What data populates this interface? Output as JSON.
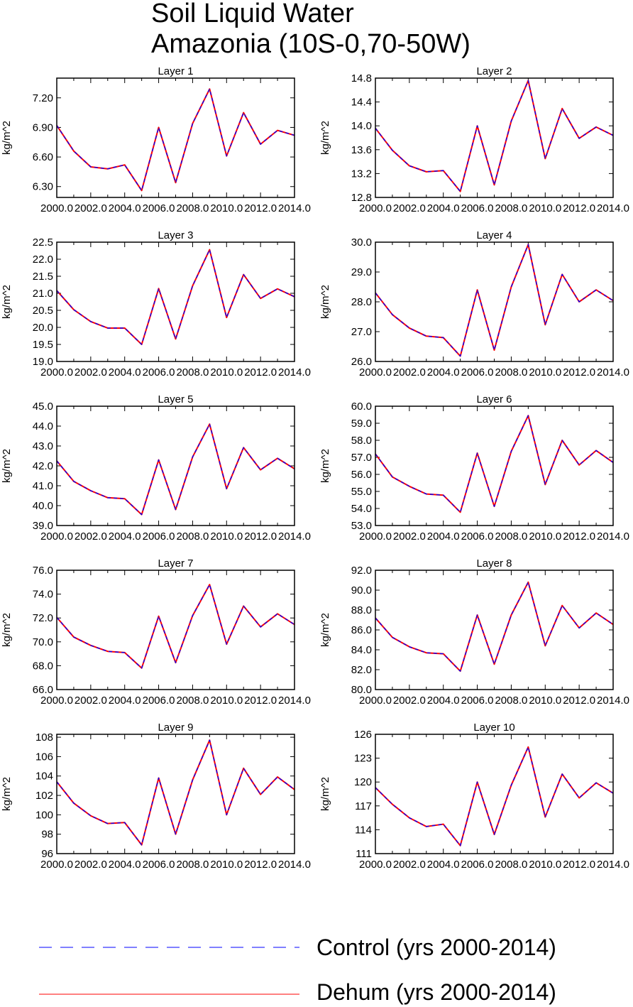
{
  "title_line1": "Soil Liquid Water",
  "title_line2": "Amazonia (10S-0,70-50W)",
  "legend": [
    {
      "label": "Control (yrs 2000-2014)",
      "color": "#0000ff",
      "style": "dashed"
    },
    {
      "label": "Dehum (yrs 2000-2014)",
      "color": "#ff0000",
      "style": "solid"
    }
  ],
  "chart_data": [
    {
      "type": "line",
      "title": "Layer 1",
      "ylabel": "kg/m^2",
      "xlim": [
        2000,
        2014
      ],
      "ylim": [
        6.19,
        7.4
      ],
      "yticks": [
        6.3,
        6.6,
        6.9,
        7.2
      ],
      "ytick_labels": [
        "6.30",
        "6.60",
        "6.90",
        "7.20"
      ],
      "xticks": [
        2000,
        2002,
        2004,
        2006,
        2008,
        2010,
        2012,
        2014
      ],
      "xtick_labels": [
        "2000.0",
        "2002.0",
        "2004.0",
        "2006.0",
        "2008.0",
        "2010.0",
        "2012.0",
        "2014.0"
      ],
      "x": [
        2000,
        2001,
        2002,
        2003,
        2004,
        2005,
        2006,
        2007,
        2008,
        2009,
        2010,
        2011,
        2012,
        2013,
        2014
      ],
      "series": [
        {
          "name": "Control (yrs 2000-2014)",
          "values": [
            6.92,
            6.66,
            6.5,
            6.48,
            6.52,
            6.26,
            6.9,
            6.34,
            6.94,
            7.29,
            6.61,
            7.05,
            6.73,
            6.87,
            6.82
          ]
        },
        {
          "name": "Dehum (yrs 2000-2014)",
          "values": [
            6.92,
            6.66,
            6.5,
            6.48,
            6.52,
            6.26,
            6.9,
            6.34,
            6.94,
            7.29,
            6.61,
            7.05,
            6.73,
            6.87,
            6.82
          ]
        }
      ]
    },
    {
      "type": "line",
      "title": "Layer 2",
      "ylabel": "kg/m^2",
      "xlim": [
        2000,
        2014
      ],
      "ylim": [
        12.8,
        14.8
      ],
      "yticks": [
        12.8,
        13.2,
        13.6,
        14.0,
        14.4,
        14.8
      ],
      "ytick_labels": [
        "12.8",
        "13.2",
        "13.6",
        "14.0",
        "14.4",
        "14.8"
      ],
      "xticks": [
        2000,
        2002,
        2004,
        2006,
        2008,
        2010,
        2012,
        2014
      ],
      "xtick_labels": [
        "2000.0",
        "2002.0",
        "2004.0",
        "2006.0",
        "2008.0",
        "2010.0",
        "2012.0",
        "2014.0"
      ],
      "x": [
        2000,
        2001,
        2002,
        2003,
        2004,
        2005,
        2006,
        2007,
        2008,
        2009,
        2010,
        2011,
        2012,
        2013,
        2014
      ],
      "series": [
        {
          "name": "Control (yrs 2000-2014)",
          "values": [
            13.96,
            13.59,
            13.33,
            13.23,
            13.25,
            12.9,
            14.0,
            13.01,
            14.08,
            14.76,
            13.45,
            14.29,
            13.79,
            13.98,
            13.84
          ]
        },
        {
          "name": "Dehum (yrs 2000-2014)",
          "values": [
            13.96,
            13.59,
            13.33,
            13.23,
            13.25,
            12.9,
            14.0,
            13.01,
            14.08,
            14.76,
            13.45,
            14.29,
            13.79,
            13.98,
            13.84
          ]
        }
      ]
    },
    {
      "type": "line",
      "title": "Layer 3",
      "ylabel": "kg/m^2",
      "xlim": [
        2000,
        2014
      ],
      "ylim": [
        19.0,
        22.5
      ],
      "yticks": [
        19.0,
        19.5,
        20.0,
        20.5,
        21.0,
        21.5,
        22.0,
        22.5
      ],
      "ytick_labels": [
        "19.0",
        "19.5",
        "20.0",
        "20.5",
        "21.0",
        "21.5",
        "22.0",
        "22.5"
      ],
      "xticks": [
        2000,
        2002,
        2004,
        2006,
        2008,
        2010,
        2012,
        2014
      ],
      "xtick_labels": [
        "2000.0",
        "2002.0",
        "2004.0",
        "2006.0",
        "2008.0",
        "2010.0",
        "2012.0",
        "2014.0"
      ],
      "x": [
        2000,
        2001,
        2002,
        2003,
        2004,
        2005,
        2006,
        2007,
        2008,
        2009,
        2010,
        2011,
        2012,
        2013,
        2014
      ],
      "series": [
        {
          "name": "Control (yrs 2000-2014)",
          "values": [
            21.08,
            20.52,
            20.17,
            19.98,
            19.98,
            19.5,
            21.14,
            19.66,
            21.22,
            22.28,
            20.29,
            21.55,
            20.85,
            21.13,
            20.9
          ]
        },
        {
          "name": "Dehum (yrs 2000-2014)",
          "values": [
            21.08,
            20.52,
            20.17,
            19.98,
            19.98,
            19.5,
            21.14,
            19.66,
            21.22,
            22.28,
            20.29,
            21.55,
            20.85,
            21.13,
            20.9
          ]
        }
      ]
    },
    {
      "type": "line",
      "title": "Layer 4",
      "ylabel": "kg/m^2",
      "xlim": [
        2000,
        2014
      ],
      "ylim": [
        26.0,
        30.0
      ],
      "yticks": [
        26.0,
        27.0,
        28.0,
        29.0,
        30.0
      ],
      "ytick_labels": [
        "26.0",
        "27.0",
        "28.0",
        "29.0",
        "30.0"
      ],
      "xticks": [
        2000,
        2002,
        2004,
        2006,
        2008,
        2010,
        2012,
        2014
      ],
      "xtick_labels": [
        "2000.0",
        "2002.0",
        "2004.0",
        "2006.0",
        "2008.0",
        "2010.0",
        "2012.0",
        "2014.0"
      ],
      "x": [
        2000,
        2001,
        2002,
        2003,
        2004,
        2005,
        2006,
        2007,
        2008,
        2009,
        2010,
        2011,
        2012,
        2013,
        2014
      ],
      "series": [
        {
          "name": "Control (yrs 2000-2014)",
          "values": [
            28.3,
            27.57,
            27.12,
            26.85,
            26.8,
            26.18,
            28.4,
            26.38,
            28.5,
            29.92,
            27.23,
            28.92,
            28.0,
            28.4,
            28.04
          ]
        },
        {
          "name": "Dehum (yrs 2000-2014)",
          "values": [
            28.3,
            27.57,
            27.12,
            26.85,
            26.8,
            26.18,
            28.4,
            26.38,
            28.5,
            29.92,
            27.23,
            28.92,
            28.0,
            28.4,
            28.04
          ]
        }
      ]
    },
    {
      "type": "line",
      "title": "Layer 5",
      "ylabel": "kg/m^2",
      "xlim": [
        2000,
        2014
      ],
      "ylim": [
        39.0,
        45.0
      ],
      "yticks": [
        39.0,
        40.0,
        41.0,
        42.0,
        43.0,
        44.0,
        45.0
      ],
      "ytick_labels": [
        "39.0",
        "40.0",
        "41.0",
        "42.0",
        "43.0",
        "44.0",
        "45.0"
      ],
      "xticks": [
        2000,
        2002,
        2004,
        2006,
        2008,
        2010,
        2012,
        2014
      ],
      "xtick_labels": [
        "2000.0",
        "2002.0",
        "2004.0",
        "2006.0",
        "2008.0",
        "2010.0",
        "2012.0",
        "2014.0"
      ],
      "x": [
        2000,
        2001,
        2002,
        2003,
        2004,
        2005,
        2006,
        2007,
        2008,
        2009,
        2010,
        2011,
        2012,
        2013,
        2014
      ],
      "series": [
        {
          "name": "Control (yrs 2000-2014)",
          "values": [
            42.25,
            41.22,
            40.75,
            40.4,
            40.35,
            39.55,
            42.3,
            39.8,
            42.45,
            44.1,
            40.85,
            42.92,
            41.8,
            42.38,
            41.85
          ]
        },
        {
          "name": "Dehum (yrs 2000-2014)",
          "values": [
            42.25,
            41.22,
            40.75,
            40.4,
            40.35,
            39.55,
            42.3,
            39.8,
            42.45,
            44.1,
            40.85,
            42.92,
            41.8,
            42.38,
            41.85
          ]
        }
      ]
    },
    {
      "type": "line",
      "title": "Layer 6",
      "ylabel": "kg/m^2",
      "xlim": [
        2000,
        2014
      ],
      "ylim": [
        53.0,
        60.0
      ],
      "yticks": [
        53.0,
        54.0,
        55.0,
        56.0,
        57.0,
        58.0,
        59.0,
        60.0
      ],
      "ytick_labels": [
        "53.0",
        "54.0",
        "55.0",
        "56.0",
        "57.0",
        "58.0",
        "59.0",
        "60.0"
      ],
      "xticks": [
        2000,
        2002,
        2004,
        2006,
        2008,
        2010,
        2012,
        2014
      ],
      "xtick_labels": [
        "2000.0",
        "2002.0",
        "2004.0",
        "2006.0",
        "2008.0",
        "2010.0",
        "2012.0",
        "2014.0"
      ],
      "x": [
        2000,
        2001,
        2002,
        2003,
        2004,
        2005,
        2006,
        2007,
        2008,
        2009,
        2010,
        2011,
        2012,
        2013,
        2014
      ],
      "series": [
        {
          "name": "Control (yrs 2000-2014)",
          "values": [
            57.2,
            55.85,
            55.3,
            54.85,
            54.78,
            53.78,
            57.25,
            54.12,
            57.35,
            59.45,
            55.4,
            58.0,
            56.55,
            57.4,
            56.7
          ]
        },
        {
          "name": "Dehum (yrs 2000-2014)",
          "values": [
            57.2,
            55.85,
            55.3,
            54.85,
            54.78,
            53.78,
            57.25,
            54.12,
            57.35,
            59.45,
            55.4,
            58.0,
            56.55,
            57.4,
            56.7
          ]
        }
      ]
    },
    {
      "type": "line",
      "title": "Layer 7",
      "ylabel": "kg/m^2",
      "xlim": [
        2000,
        2014
      ],
      "ylim": [
        66.0,
        76.0
      ],
      "yticks": [
        66.0,
        68.0,
        70.0,
        72.0,
        74.0,
        76.0
      ],
      "ytick_labels": [
        "66.0",
        "68.0",
        "70.0",
        "72.0",
        "74.0",
        "76.0"
      ],
      "xticks": [
        2000,
        2002,
        2004,
        2006,
        2008,
        2010,
        2012,
        2014
      ],
      "xtick_labels": [
        "2000.0",
        "2002.0",
        "2004.0",
        "2006.0",
        "2008.0",
        "2010.0",
        "2012.0",
        "2014.0"
      ],
      "x": [
        2000,
        2001,
        2002,
        2003,
        2004,
        2005,
        2006,
        2007,
        2008,
        2009,
        2010,
        2011,
        2012,
        2013,
        2014
      ],
      "series": [
        {
          "name": "Control (yrs 2000-2014)",
          "values": [
            72.05,
            70.4,
            69.7,
            69.2,
            69.1,
            67.8,
            72.15,
            68.25,
            72.2,
            74.8,
            69.8,
            73.0,
            71.25,
            72.35,
            71.45
          ]
        },
        {
          "name": "Dehum (yrs 2000-2014)",
          "values": [
            72.05,
            70.4,
            69.7,
            69.2,
            69.1,
            67.8,
            72.15,
            68.25,
            72.2,
            74.8,
            69.8,
            73.0,
            71.25,
            72.35,
            71.45
          ]
        }
      ]
    },
    {
      "type": "line",
      "title": "Layer 8",
      "ylabel": "kg/m^2",
      "xlim": [
        2000,
        2014
      ],
      "ylim": [
        80.0,
        92.0
      ],
      "yticks": [
        80.0,
        82.0,
        84.0,
        86.0,
        88.0,
        90.0,
        92.0
      ],
      "ytick_labels": [
        "80.0",
        "82.0",
        "84.0",
        "86.0",
        "88.0",
        "90.0",
        "92.0"
      ],
      "xticks": [
        2000,
        2002,
        2004,
        2006,
        2008,
        2010,
        2012,
        2014
      ],
      "xtick_labels": [
        "2000.0",
        "2002.0",
        "2004.0",
        "2006.0",
        "2008.0",
        "2010.0",
        "2012.0",
        "2014.0"
      ],
      "x": [
        2000,
        2001,
        2002,
        2003,
        2004,
        2005,
        2006,
        2007,
        2008,
        2009,
        2010,
        2011,
        2012,
        2013,
        2014
      ],
      "series": [
        {
          "name": "Control (yrs 2000-2014)",
          "values": [
            87.2,
            85.25,
            84.3,
            83.7,
            83.6,
            81.85,
            87.5,
            82.55,
            87.5,
            90.8,
            84.4,
            88.45,
            86.2,
            87.7,
            86.55
          ]
        },
        {
          "name": "Dehum (yrs 2000-2014)",
          "values": [
            87.2,
            85.25,
            84.3,
            83.7,
            83.6,
            81.85,
            87.5,
            82.55,
            87.5,
            90.8,
            84.4,
            88.45,
            86.2,
            87.7,
            86.55
          ]
        }
      ]
    },
    {
      "type": "line",
      "title": "Layer 9",
      "ylabel": "kg/m^2",
      "xlim": [
        2000,
        2014
      ],
      "ylim": [
        96.0,
        108.3
      ],
      "yticks": [
        96,
        98,
        100,
        102,
        104,
        106,
        108
      ],
      "ytick_labels": [
        "96",
        "98",
        "100",
        "102",
        "104",
        "106",
        "108"
      ],
      "xticks": [
        2000,
        2002,
        2004,
        2006,
        2008,
        2010,
        2012,
        2014
      ],
      "xtick_labels": [
        "2000.0",
        "2002.0",
        "2004.0",
        "2006.0",
        "2008.0",
        "2010.0",
        "2012.0",
        "2014.0"
      ],
      "x": [
        2000,
        2001,
        2002,
        2003,
        2004,
        2005,
        2006,
        2007,
        2008,
        2009,
        2010,
        2011,
        2012,
        2013,
        2014
      ],
      "series": [
        {
          "name": "Control (yrs 2000-2014)",
          "values": [
            103.4,
            101.2,
            99.9,
            99.1,
            99.2,
            96.9,
            103.8,
            98.0,
            103.6,
            107.7,
            100.0,
            104.8,
            102.1,
            103.9,
            102.6
          ]
        },
        {
          "name": "Dehum (yrs 2000-2014)",
          "values": [
            103.4,
            101.2,
            99.9,
            99.1,
            99.2,
            96.9,
            103.8,
            98.0,
            103.6,
            107.7,
            100.0,
            104.8,
            102.1,
            103.9,
            102.6
          ]
        }
      ]
    },
    {
      "type": "line",
      "title": "Layer 10",
      "ylabel": "kg/m^2",
      "xlim": [
        2000,
        2014
      ],
      "ylim": [
        111.0,
        126.0
      ],
      "yticks": [
        111,
        114,
        117,
        120,
        123,
        126
      ],
      "ytick_labels": [
        "111",
        "114",
        "117",
        "120",
        "123",
        "126"
      ],
      "xticks": [
        2000,
        2002,
        2004,
        2006,
        2008,
        2010,
        2012,
        2014
      ],
      "xtick_labels": [
        "2000.0",
        "2002.0",
        "2004.0",
        "2006.0",
        "2008.0",
        "2010.0",
        "2012.0",
        "2014.0"
      ],
      "x": [
        2000,
        2001,
        2002,
        2003,
        2004,
        2005,
        2006,
        2007,
        2008,
        2009,
        2010,
        2011,
        2012,
        2013,
        2014
      ],
      "series": [
        {
          "name": "Control (yrs 2000-2014)",
          "values": [
            119.3,
            117.2,
            115.5,
            114.4,
            114.7,
            112.0,
            120.0,
            113.4,
            119.6,
            124.4,
            115.6,
            121.0,
            118.0,
            119.9,
            118.6
          ]
        },
        {
          "name": "Dehum (yrs 2000-2014)",
          "values": [
            119.3,
            117.2,
            115.5,
            114.4,
            114.7,
            112.0,
            120.0,
            113.4,
            119.6,
            124.4,
            115.6,
            121.0,
            118.0,
            119.9,
            118.6
          ]
        }
      ]
    }
  ]
}
